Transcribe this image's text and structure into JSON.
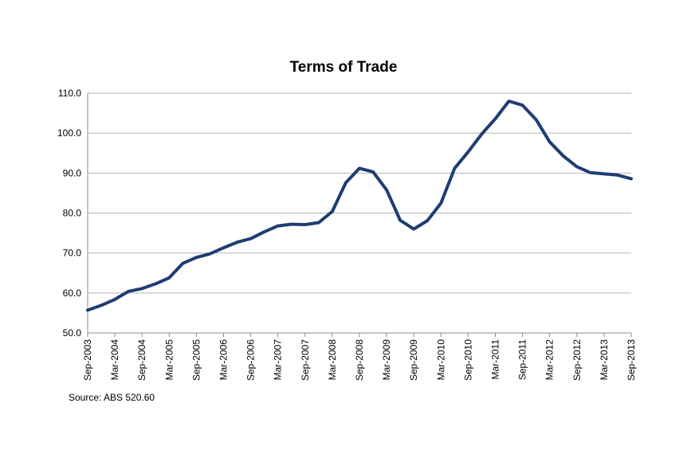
{
  "chart_data": {
    "type": "line",
    "title": "Terms of Trade",
    "xlabel": "",
    "ylabel": "",
    "source": "Source: ABS 520.60",
    "ylim": [
      50,
      110
    ],
    "yticks": [
      "50.0",
      "60.0",
      "70.0",
      "80.0",
      "90.0",
      "100.0",
      "110.0"
    ],
    "x": [
      "Sep-2003",
      "Dec-2003",
      "Mar-2004",
      "Jun-2004",
      "Sep-2004",
      "Dec-2004",
      "Mar-2005",
      "Jun-2005",
      "Sep-2005",
      "Dec-2005",
      "Mar-2006",
      "Jun-2006",
      "Sep-2006",
      "Dec-2006",
      "Mar-2007",
      "Jun-2007",
      "Sep-2007",
      "Dec-2007",
      "Mar-2008",
      "Jun-2008",
      "Sep-2008",
      "Dec-2008",
      "Mar-2009",
      "Jun-2009",
      "Sep-2009",
      "Dec-2009",
      "Mar-2010",
      "Jun-2010",
      "Sep-2010",
      "Dec-2010",
      "Mar-2011",
      "Jun-2011",
      "Sep-2011",
      "Dec-2011",
      "Mar-2012",
      "Jun-2012",
      "Sep-2012",
      "Dec-2012",
      "Mar-2013",
      "Jun-2013",
      "Sep-2013"
    ],
    "xtick_labels": [
      "Sep-2003",
      "Mar-2004",
      "Sep-2004",
      "Mar-2005",
      "Sep-2005",
      "Mar-2006",
      "Sep-2006",
      "Mar-2007",
      "Sep-2007",
      "Mar-2008",
      "Sep-2008",
      "Mar-2009",
      "Sep-2009",
      "Mar-2010",
      "Sep-2010",
      "Mar-2011",
      "Sep-2011",
      "Mar-2012",
      "Sep-2012",
      "Mar-2013",
      "Sep-2013"
    ],
    "series": [
      {
        "values": [
          55.7,
          56.9,
          58.4,
          60.4,
          61.1,
          62.3,
          63.8,
          67.4,
          68.9,
          69.8,
          71.3,
          72.7,
          73.6,
          75.3,
          76.8,
          77.2,
          77.1,
          77.6,
          80.4,
          87.6,
          91.2,
          90.3,
          85.8,
          78.2,
          76.0,
          78.1,
          82.5,
          91.2,
          95.3,
          99.8,
          103.6,
          108.0,
          107.0,
          103.4,
          97.8,
          94.3,
          91.6,
          90.1,
          89.8,
          89.5,
          88.6
        ],
        "color": "#1f3d72"
      }
    ],
    "grid": true
  }
}
